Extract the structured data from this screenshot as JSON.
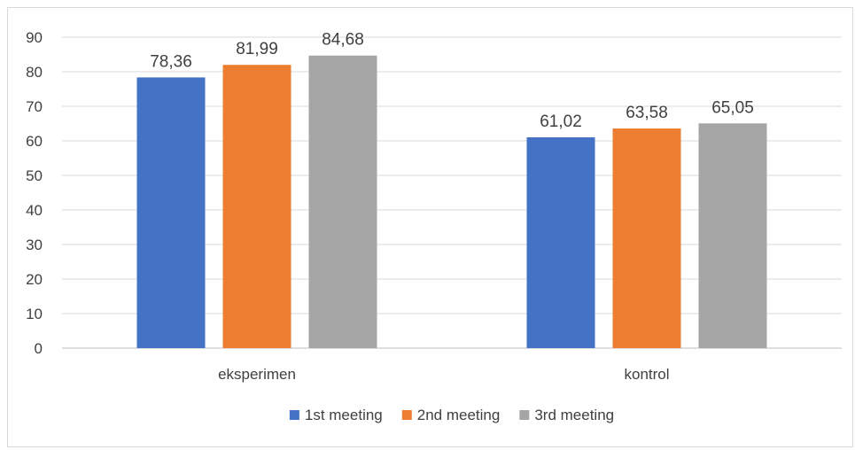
{
  "chart_data": {
    "type": "bar",
    "title": "",
    "xlabel": "",
    "ylabel": "",
    "categories": [
      "eksperimen",
      "kontrol"
    ],
    "series": [
      {
        "name": "1st meeting",
        "values": [
          78.36,
          61.02
        ],
        "labels": [
          "78,36",
          "61,02"
        ],
        "color": "#4472C4"
      },
      {
        "name": "2nd meeting",
        "values": [
          81.99,
          63.58
        ],
        "labels": [
          "81,99",
          "63,58"
        ],
        "color": "#ED7D31"
      },
      {
        "name": "3rd meeting",
        "values": [
          84.68,
          65.05
        ],
        "labels": [
          "84,68",
          "65,05"
        ],
        "color": "#A5A5A5"
      }
    ],
    "ylim": [
      0,
      90
    ],
    "yticks": [
      0,
      10,
      20,
      30,
      40,
      50,
      60,
      70,
      80,
      90
    ],
    "grid": true,
    "legend_position": "bottom"
  }
}
